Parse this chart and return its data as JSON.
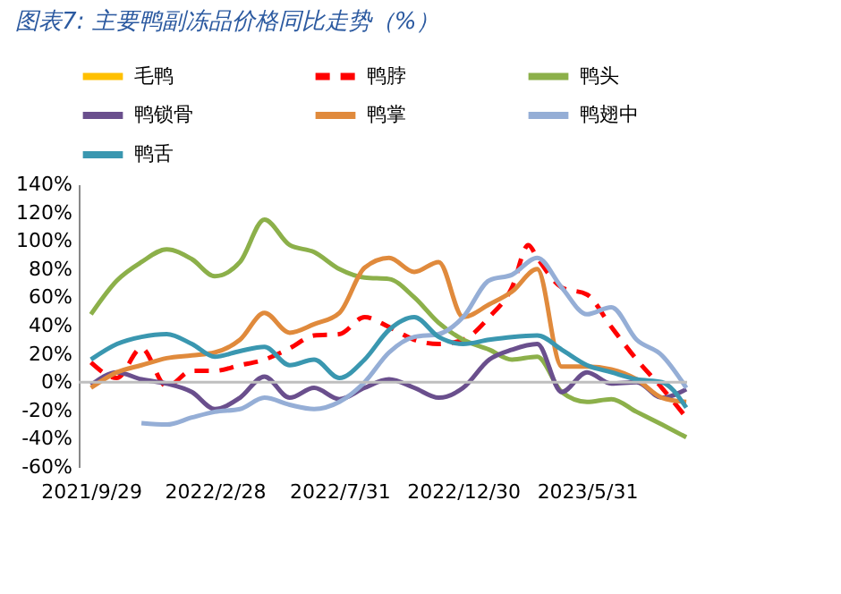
{
  "chart_data": {
    "type": "line",
    "title": "图表7: 主要鸭副冻品价格同比走势（%）",
    "x": [
      "2021-09-29",
      "2021-10-31",
      "2021-11-30",
      "2021-12-31",
      "2022-01-31",
      "2022-02-28",
      "2022-03-31",
      "2022-04-30",
      "2022-05-31",
      "2022-06-30",
      "2022-07-31",
      "2022-08-31",
      "2022-09-30",
      "2022-10-31",
      "2022-11-30",
      "2022-12-30",
      "2023-01-31",
      "2023-02-28",
      "2023-03-31",
      "2023-04-30",
      "2023-05-31",
      "2023-06-30",
      "2023-07-31",
      "2023-08-31",
      "2023-09-30"
    ],
    "series": [
      {
        "name": "毛鸭",
        "color": "#ffc000",
        "values": [
          null,
          null,
          null,
          null,
          null,
          null,
          null,
          null,
          null,
          null,
          null,
          null,
          null,
          null,
          null,
          null,
          null,
          null,
          null,
          null,
          null,
          null,
          null,
          null,
          null
        ]
      },
      {
        "name": "鸭脖",
        "color": "#ff0000",
        "line_style": "dashed",
        "x": [
          "2021-09-29",
          "2021-10-31",
          "2021-11-30",
          "2021-12-31",
          "2022-01-31",
          "2022-02-28",
          "2022-03-31",
          "2022-04-30",
          "2022-05-31",
          "2022-06-30",
          "2022-07-31",
          "2022-08-31",
          "2022-09-30",
          "2022-10-31",
          "2022-11-30",
          "2022-12-30",
          "2023-01-31",
          "2023-02-28",
          "2023-03-20",
          "2023-03-31",
          "2023-04-30",
          "2023-05-31",
          "2023-06-30",
          "2023-07-31",
          "2023-08-31",
          "2023-09-30"
        ],
        "values": [
          14,
          3,
          24,
          -3,
          8,
          8,
          12,
          16,
          24,
          33,
          34,
          46,
          39,
          30,
          27,
          30,
          46,
          67,
          97,
          88,
          67,
          62,
          39,
          16,
          -4,
          -25
        ]
      },
      {
        "name": "鸭头",
        "color": "#8cb04a",
        "values": [
          48,
          72,
          85,
          94,
          87,
          75,
          85,
          115,
          97,
          92,
          80,
          74,
          73,
          60,
          42,
          30,
          23,
          16,
          18,
          -7,
          -14,
          -12,
          -21,
          -30,
          -39
        ]
      },
      {
        "name": "鸭锁骨",
        "color": "#6a4f8d",
        "values": [
          -2,
          7,
          2,
          -1,
          -7,
          -19,
          -11,
          4,
          -11,
          -4,
          -12,
          -4,
          2,
          -4,
          -11,
          -4,
          16,
          23,
          27,
          -7,
          7,
          -1,
          0,
          -11,
          -5
        ]
      },
      {
        "name": "鸭掌",
        "color": "#e08a3c",
        "values": [
          -4,
          7,
          12,
          17,
          19,
          21,
          30,
          49,
          35,
          41,
          49,
          81,
          88,
          78,
          85,
          46,
          55,
          64,
          80,
          11,
          11,
          9,
          2,
          -11,
          -14
        ]
      },
      {
        "name": "鸭翅中",
        "color": "#95aed6",
        "values": [
          null,
          null,
          -29,
          -30,
          -25,
          -21,
          -19,
          -11,
          -16,
          -19,
          -14,
          0,
          21,
          32,
          34,
          46,
          72,
          76,
          88,
          67,
          48,
          53,
          30,
          19,
          -4
        ]
      },
      {
        "name": "鸭舌",
        "color": "#3a97b0",
        "values": [
          16,
          27,
          32,
          34,
          27,
          18,
          22,
          25,
          12,
          16,
          3,
          16,
          37,
          46,
          32,
          27,
          30,
          32,
          33,
          23,
          12,
          7,
          2,
          0,
          -18
        ]
      }
    ],
    "xlim": [
      "2021-09-14",
      "2023-10-01"
    ],
    "xticks": [
      {
        "value": "2021-09-29",
        "label": "2021/9/29"
      },
      {
        "value": "2022-02-28",
        "label": "2022/2/28"
      },
      {
        "value": "2022-07-31",
        "label": "2022/7/31"
      },
      {
        "value": "2022-12-30",
        "label": "2022/12/30"
      },
      {
        "value": "2023-05-31",
        "label": "2023/5/31"
      }
    ],
    "ylim": [
      -60,
      140
    ],
    "yticks": [
      {
        "value": -60,
        "label": "-60%"
      },
      {
        "value": -40,
        "label": "-40%"
      },
      {
        "value": -20,
        "label": "-20%"
      },
      {
        "value": 0,
        "label": "0%"
      },
      {
        "value": 20,
        "label": "20%"
      },
      {
        "value": 40,
        "label": "40%"
      },
      {
        "value": 60,
        "label": "60%"
      },
      {
        "value": 80,
        "label": "80%"
      },
      {
        "value": 100,
        "label": "100%"
      },
      {
        "value": 120,
        "label": "120%"
      },
      {
        "value": 140,
        "label": "140%"
      }
    ],
    "ref_lines": [
      {
        "axis": "y",
        "value": 0,
        "color": "#bfbfbf"
      }
    ],
    "grid": false,
    "legend": "top",
    "marker": "none"
  }
}
